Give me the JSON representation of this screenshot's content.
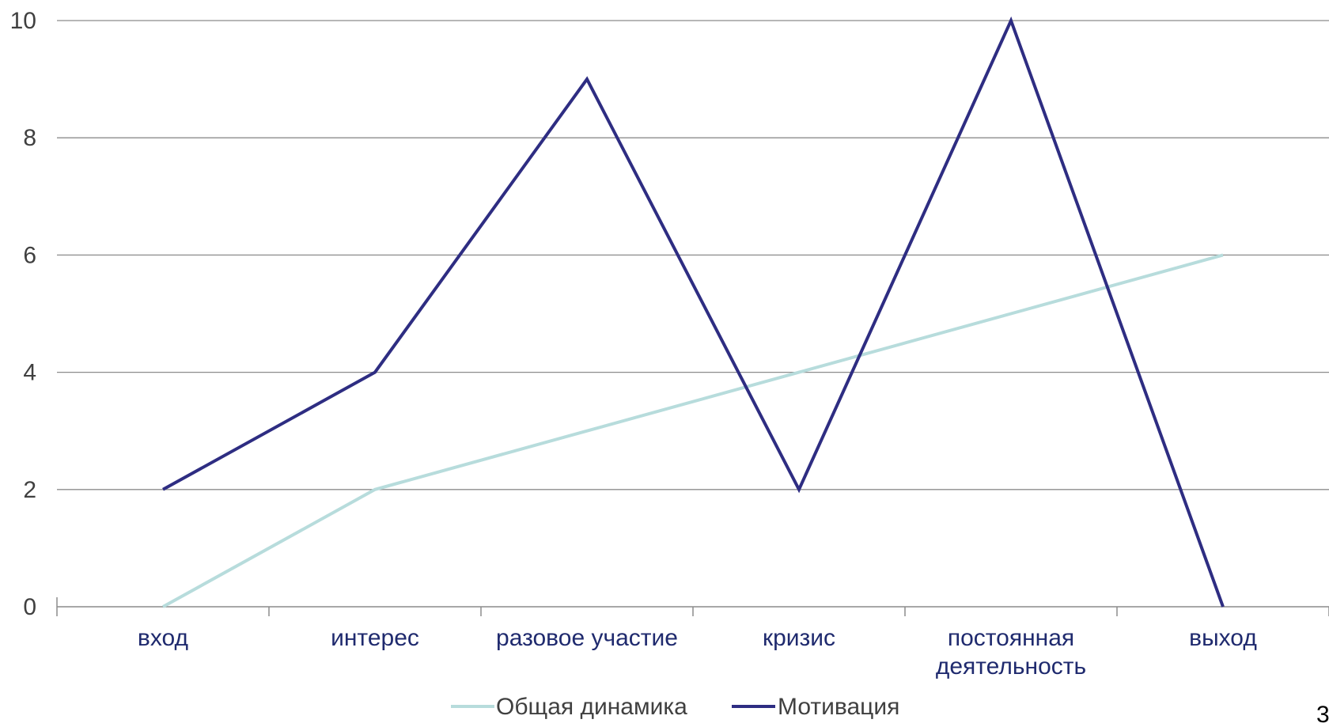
{
  "chart_data": {
    "type": "line",
    "categories": [
      [
        "вход"
      ],
      [
        "интерес"
      ],
      [
        "разовое участие"
      ],
      [
        "кризис"
      ],
      [
        "постоянная",
        "деятельность"
      ],
      [
        "выход"
      ]
    ],
    "series": [
      {
        "name": "Общая динамика",
        "values": [
          0,
          2,
          3,
          4,
          5,
          6
        ],
        "color": "#b7dcdc"
      },
      {
        "name": "Мотивация",
        "values": [
          2,
          4,
          9,
          2,
          10,
          0
        ],
        "color": "#2e2d82"
      }
    ],
    "ylim": [
      0,
      10
    ],
    "yticks": [
      0,
      2,
      4,
      6,
      8,
      10
    ],
    "grid": true,
    "legend": "bottom"
  },
  "page_number": "3"
}
